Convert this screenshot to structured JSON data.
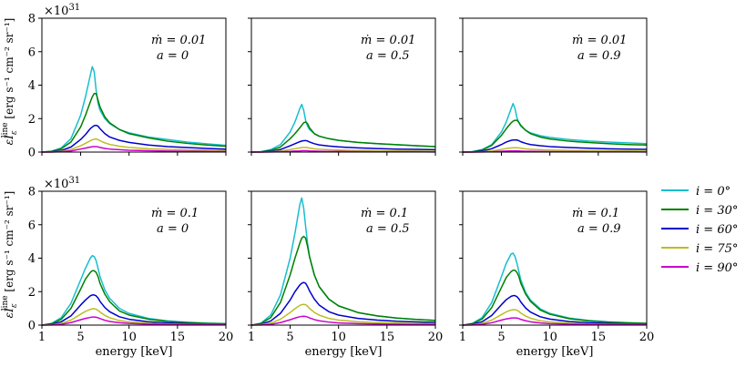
{
  "chart_data": {
    "type": "line",
    "x": [
      1,
      2,
      3,
      4,
      5,
      5.5,
      6,
      6.2,
      6.4,
      6.6,
      6.8,
      7,
      7.5,
      8,
      9,
      10,
      12,
      14,
      16,
      18,
      20
    ],
    "xlim": [
      1,
      20
    ],
    "ylim": [
      0,
      8
    ],
    "xticks": [
      "1",
      "5",
      "10",
      "15",
      "20"
    ],
    "yticks": [
      "0",
      "2",
      "4",
      "6",
      "8"
    ],
    "xlabel": "energy  [keV]",
    "ylabel": "εI_ε^line  [erg s⁻¹ cm⁻² sr⁻¹]",
    "ylabel_main": "εI",
    "ylabel_sub": "ε",
    "ylabel_sup": "line",
    "ylabel_units": "[erg s⁻¹ cm⁻² sr⁻¹]",
    "multiplier_text": "×10",
    "multiplier_exp": "31",
    "legend": {
      "placement": "right",
      "entries": [
        {
          "label": "i = 0°",
          "color": "#17becf"
        },
        {
          "label": "i = 30°",
          "color": "#008000"
        },
        {
          "label": "i = 60°",
          "color": "#0000cc"
        },
        {
          "label": "i = 75°",
          "color": "#bcbd22"
        },
        {
          "label": "i = 90°",
          "color": "#cc00cc"
        }
      ]
    },
    "panels": [
      {
        "mdot": "ṁ = 0.01",
        "spin": "a = 0",
        "show_multiplier": true,
        "series": [
          {
            "name": "i = 0°",
            "values": [
              0,
              0.05,
              0.25,
              0.8,
              2.2,
              3.3,
              4.6,
              5.1,
              4.8,
              3.7,
              2.9,
              2.5,
              2.0,
              1.7,
              1.35,
              1.15,
              0.9,
              0.75,
              0.6,
              0.5,
              0.4
            ]
          },
          {
            "name": "i = 30°",
            "values": [
              0,
              0.05,
              0.2,
              0.6,
              1.5,
              2.2,
              3.0,
              3.3,
              3.5,
              3.5,
              3.1,
              2.7,
              2.1,
              1.75,
              1.35,
              1.1,
              0.85,
              0.65,
              0.52,
              0.42,
              0.35
            ]
          },
          {
            "name": "i = 60°",
            "values": [
              0,
              0.02,
              0.1,
              0.3,
              0.75,
              1.05,
              1.4,
              1.5,
              1.58,
              1.6,
              1.55,
              1.4,
              1.1,
              0.9,
              0.7,
              0.58,
              0.42,
              0.33,
              0.27,
              0.22,
              0.18
            ]
          },
          {
            "name": "i = 75°",
            "values": [
              0,
              0.01,
              0.05,
              0.15,
              0.38,
              0.52,
              0.68,
              0.73,
              0.77,
              0.78,
              0.75,
              0.68,
              0.55,
              0.46,
              0.35,
              0.28,
              0.2,
              0.16,
              0.13,
              0.11,
              0.09
            ]
          },
          {
            "name": "i = 90°",
            "values": [
              0,
              0,
              0.02,
              0.07,
              0.18,
              0.24,
              0.3,
              0.32,
              0.33,
              0.33,
              0.31,
              0.28,
              0.22,
              0.18,
              0.14,
              0.11,
              0.08,
              0.06,
              0.05,
              0.04,
              0.03
            ]
          }
        ]
      },
      {
        "mdot": "ṁ = 0.01",
        "spin": "a = 0.5",
        "show_multiplier": false,
        "series": [
          {
            "name": "i = 0°",
            "values": [
              0,
              0.03,
              0.15,
              0.45,
              1.2,
              1.8,
              2.6,
              2.85,
              2.5,
              1.9,
              1.55,
              1.35,
              1.1,
              0.95,
              0.8,
              0.7,
              0.58,
              0.5,
              0.44,
              0.38,
              0.33
            ]
          },
          {
            "name": "i = 30°",
            "values": [
              0,
              0.02,
              0.1,
              0.3,
              0.8,
              1.1,
              1.45,
              1.6,
              1.75,
              1.8,
              1.7,
              1.45,
              1.1,
              0.95,
              0.8,
              0.7,
              0.58,
              0.5,
              0.44,
              0.38,
              0.33
            ]
          },
          {
            "name": "i = 60°",
            "values": [
              0,
              0.01,
              0.05,
              0.15,
              0.38,
              0.5,
              0.62,
              0.66,
              0.68,
              0.69,
              0.66,
              0.6,
              0.5,
              0.43,
              0.36,
              0.31,
              0.25,
              0.21,
              0.18,
              0.16,
              0.14
            ]
          },
          {
            "name": "i = 75°",
            "values": [
              0,
              0,
              0.02,
              0.06,
              0.15,
              0.2,
              0.25,
              0.27,
              0.28,
              0.28,
              0.27,
              0.24,
              0.2,
              0.17,
              0.14,
              0.12,
              0.1,
              0.08,
              0.07,
              0.06,
              0.05
            ]
          },
          {
            "name": "i = 90°",
            "values": [
              0,
              0,
              0.01,
              0.02,
              0.04,
              0.06,
              0.07,
              0.08,
              0.08,
              0.08,
              0.08,
              0.07,
              0.06,
              0.05,
              0.04,
              0.04,
              0.03,
              0.02,
              0.02,
              0.02,
              0.01
            ]
          }
        ]
      },
      {
        "mdot": "ṁ = 0.01",
        "spin": "a = 0.9",
        "show_multiplier": false,
        "series": [
          {
            "name": "i = 0°",
            "values": [
              0,
              0.03,
              0.15,
              0.45,
              1.2,
              1.8,
              2.6,
              2.9,
              2.6,
              2.05,
              1.75,
              1.55,
              1.3,
              1.15,
              0.98,
              0.88,
              0.75,
              0.66,
              0.6,
              0.55,
              0.5
            ]
          },
          {
            "name": "i = 30°",
            "values": [
              0,
              0.02,
              0.12,
              0.4,
              1.0,
              1.4,
              1.75,
              1.85,
              1.9,
              1.9,
              1.78,
              1.6,
              1.3,
              1.1,
              0.9,
              0.78,
              0.65,
              0.57,
              0.5,
              0.45,
              0.42
            ]
          },
          {
            "name": "i = 60°",
            "values": [
              0,
              0.01,
              0.06,
              0.2,
              0.45,
              0.6,
              0.7,
              0.72,
              0.73,
              0.72,
              0.68,
              0.62,
              0.52,
              0.45,
              0.38,
              0.33,
              0.27,
              0.23,
              0.2,
              0.18,
              0.16
            ]
          },
          {
            "name": "i = 75°",
            "values": [
              0,
              0,
              0.02,
              0.07,
              0.16,
              0.21,
              0.25,
              0.26,
              0.26,
              0.26,
              0.25,
              0.23,
              0.19,
              0.17,
              0.14,
              0.12,
              0.1,
              0.09,
              0.08,
              0.07,
              0.06
            ]
          },
          {
            "name": "i = 90°",
            "values": [
              0,
              0,
              0.01,
              0.02,
              0.05,
              0.06,
              0.07,
              0.07,
              0.07,
              0.07,
              0.07,
              0.06,
              0.05,
              0.05,
              0.04,
              0.03,
              0.03,
              0.02,
              0.02,
              0.02,
              0.01
            ]
          }
        ]
      },
      {
        "mdot": "ṁ = 0.1",
        "spin": "a = 0",
        "show_multiplier": true,
        "series": [
          {
            "name": "i = 0°",
            "values": [
              0,
              0.1,
              0.45,
              1.3,
              2.7,
              3.4,
              4.0,
              4.15,
              4.1,
              3.85,
              3.4,
              2.9,
              2.1,
              1.6,
              1.0,
              0.7,
              0.4,
              0.25,
              0.17,
              0.12,
              0.09
            ]
          },
          {
            "name": "i = 30°",
            "values": [
              0,
              0.08,
              0.35,
              1.0,
              2.15,
              2.75,
              3.15,
              3.25,
              3.25,
              3.15,
              2.9,
              2.5,
              1.85,
              1.4,
              0.85,
              0.6,
              0.35,
              0.22,
              0.15,
              0.1,
              0.08
            ]
          },
          {
            "name": "i = 60°",
            "values": [
              0,
              0.05,
              0.2,
              0.55,
              1.2,
              1.5,
              1.75,
              1.8,
              1.8,
              1.75,
              1.62,
              1.42,
              1.05,
              0.8,
              0.5,
              0.35,
              0.2,
              0.13,
              0.09,
              0.06,
              0.05
            ]
          },
          {
            "name": "i = 75°",
            "values": [
              0,
              0.02,
              0.1,
              0.3,
              0.65,
              0.82,
              0.94,
              0.97,
              0.98,
              0.95,
              0.88,
              0.78,
              0.58,
              0.44,
              0.27,
              0.19,
              0.11,
              0.07,
              0.05,
              0.04,
              0.03
            ]
          },
          {
            "name": "i = 90°",
            "values": [
              0,
              0.01,
              0.05,
              0.15,
              0.32,
              0.4,
              0.46,
              0.48,
              0.48,
              0.47,
              0.44,
              0.39,
              0.29,
              0.22,
              0.14,
              0.1,
              0.06,
              0.04,
              0.03,
              0.02,
              0.02
            ]
          }
        ]
      },
      {
        "mdot": "ṁ = 0.1",
        "spin": "a = 0.5",
        "show_multiplier": false,
        "series": [
          {
            "name": "i = 0°",
            "values": [
              0,
              0.12,
              0.6,
              1.8,
              4.0,
              5.5,
              7.2,
              7.6,
              7.0,
              5.9,
              4.9,
              4.1,
              3.0,
              2.3,
              1.55,
              1.15,
              0.75,
              0.55,
              0.42,
              0.34,
              0.28
            ]
          },
          {
            "name": "i = 30°",
            "values": [
              0,
              0.1,
              0.45,
              1.35,
              3.0,
              4.0,
              4.9,
              5.2,
              5.3,
              5.2,
              4.7,
              4.1,
              3.0,
              2.3,
              1.55,
              1.15,
              0.75,
              0.55,
              0.42,
              0.34,
              0.28
            ]
          },
          {
            "name": "i = 60°",
            "values": [
              0,
              0.05,
              0.25,
              0.7,
              1.5,
              2.0,
              2.4,
              2.5,
              2.55,
              2.5,
              2.3,
              2.05,
              1.55,
              1.2,
              0.8,
              0.6,
              0.4,
              0.3,
              0.23,
              0.19,
              0.16
            ]
          },
          {
            "name": "i = 75°",
            "values": [
              0,
              0.03,
              0.12,
              0.35,
              0.75,
              0.98,
              1.18,
              1.22,
              1.24,
              1.22,
              1.13,
              1.0,
              0.76,
              0.6,
              0.4,
              0.3,
              0.2,
              0.15,
              0.12,
              0.1,
              0.08
            ]
          },
          {
            "name": "i = 90°",
            "values": [
              0,
              0.01,
              0.05,
              0.15,
              0.32,
              0.42,
              0.5,
              0.52,
              0.53,
              0.52,
              0.48,
              0.43,
              0.33,
              0.26,
              0.18,
              0.13,
              0.09,
              0.07,
              0.05,
              0.04,
              0.04
            ]
          }
        ]
      },
      {
        "mdot": "ṁ = 0.1",
        "spin": "a = 0.9",
        "show_multiplier": false,
        "series": [
          {
            "name": "i = 0°",
            "values": [
              0,
              0.1,
              0.45,
              1.35,
              2.9,
              3.7,
              4.25,
              4.3,
              4.1,
              3.7,
              3.2,
              2.7,
              1.95,
              1.5,
              0.98,
              0.7,
              0.42,
              0.28,
              0.2,
              0.15,
              0.11
            ]
          },
          {
            "name": "i = 30°",
            "values": [
              0,
              0.08,
              0.36,
              1.05,
              2.25,
              2.85,
              3.2,
              3.28,
              3.28,
              3.15,
              2.9,
              2.5,
              1.85,
              1.42,
              0.9,
              0.65,
              0.38,
              0.25,
              0.18,
              0.13,
              0.1
            ]
          },
          {
            "name": "i = 60°",
            "values": [
              0,
              0.05,
              0.2,
              0.58,
              1.22,
              1.52,
              1.72,
              1.76,
              1.76,
              1.7,
              1.57,
              1.38,
              1.02,
              0.78,
              0.5,
              0.36,
              0.21,
              0.14,
              0.1,
              0.07,
              0.05
            ]
          },
          {
            "name": "i = 75°",
            "values": [
              0,
              0.02,
              0.1,
              0.3,
              0.63,
              0.79,
              0.9,
              0.92,
              0.92,
              0.89,
              0.82,
              0.72,
              0.54,
              0.41,
              0.26,
              0.19,
              0.11,
              0.07,
              0.05,
              0.04,
              0.03
            ]
          },
          {
            "name": "i = 90°",
            "values": [
              0,
              0.01,
              0.05,
              0.14,
              0.3,
              0.37,
              0.42,
              0.43,
              0.43,
              0.42,
              0.39,
              0.34,
              0.26,
              0.2,
              0.13,
              0.09,
              0.06,
              0.04,
              0.03,
              0.02,
              0.02
            ]
          }
        ]
      }
    ]
  }
}
